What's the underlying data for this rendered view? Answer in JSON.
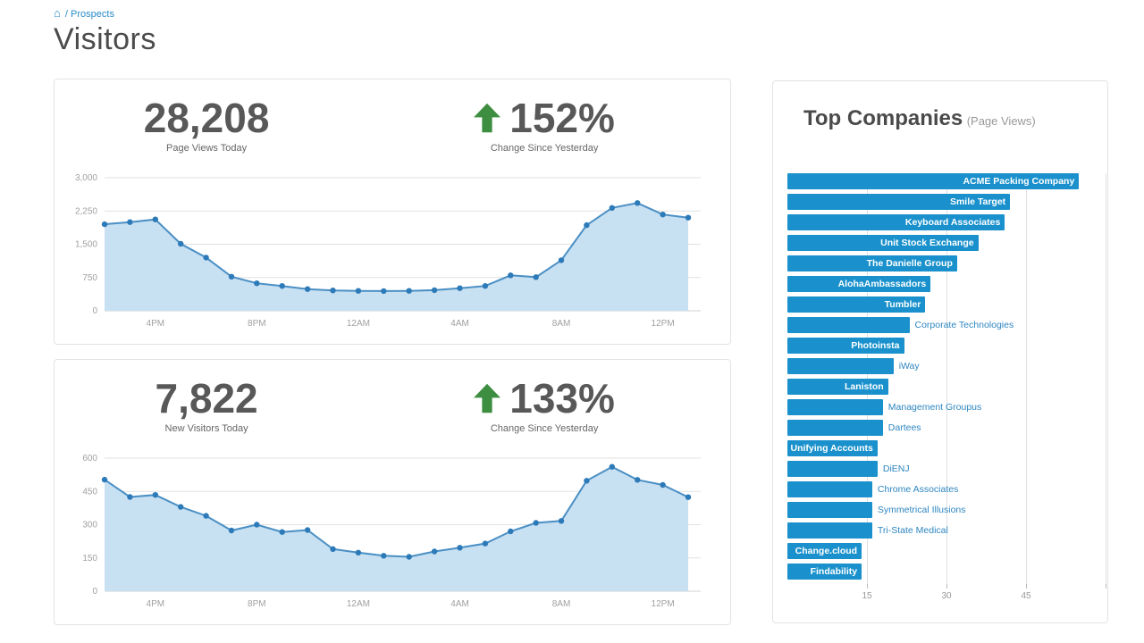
{
  "breadcrumb": {
    "home_icon": "⌂",
    "path": "/ Prospects"
  },
  "page": {
    "title": "Visitors"
  },
  "colors": {
    "bar_blue": "#1a91cc",
    "line_blue": "#4a8fc4",
    "marker_blue": "#2d7ab8",
    "fill_blue": "#c7e0f2",
    "grid_gray": "#e2e2e2",
    "zero_line_gray": "#d2d2d2",
    "axis_text_gray": "#a0a0a0",
    "arrow_green": "#3e8e41",
    "outside_label_blue": "#2e86c1"
  },
  "panels": {
    "page_views": {
      "value": "28,208",
      "value_label": "Page Views Today",
      "change": "152%",
      "change_label": "Change Since Yesterday"
    },
    "new_visitors": {
      "value": "7,822",
      "value_label": "New Visitors Today",
      "change": "133%",
      "change_label": "Change Since Yesterday"
    },
    "top_companies": {
      "title": "Top Companies",
      "subtitle": "(Page Views)"
    }
  },
  "chart_data": [
    {
      "type": "area",
      "title": "Page Views Today (hourly)",
      "x_tick_labels": [
        "4PM",
        "8PM",
        "12AM",
        "4AM",
        "8AM",
        "12PM"
      ],
      "x_tick_indices": [
        2,
        6,
        10,
        14,
        18,
        22
      ],
      "y_ticks": [
        0,
        750,
        1500,
        2250,
        3000
      ],
      "y_tick_labels": [
        "0",
        "750",
        "1,500",
        "2,250",
        "3,000"
      ],
      "ylim": [
        0,
        3000
      ],
      "grid": "horizontal",
      "legend": "none",
      "values": [
        1950,
        2000,
        2060,
        1510,
        1200,
        770,
        620,
        560,
        490,
        460,
        450,
        445,
        450,
        465,
        510,
        560,
        800,
        760,
        1140,
        1930,
        2320,
        2430,
        2170,
        2100
      ]
    },
    {
      "type": "area",
      "title": "New Visitors Today (hourly)",
      "x_tick_labels": [
        "4PM",
        "8PM",
        "12AM",
        "4AM",
        "8AM",
        "12PM"
      ],
      "x_tick_indices": [
        2,
        6,
        10,
        14,
        18,
        22
      ],
      "y_ticks": [
        0,
        150,
        300,
        450,
        600
      ],
      "y_tick_labels": [
        "0",
        "150",
        "300",
        "450",
        "600"
      ],
      "ylim": [
        0,
        600
      ],
      "grid": "horizontal",
      "legend": "none",
      "values": [
        503,
        425,
        434,
        380,
        340,
        274,
        300,
        267,
        276,
        190,
        174,
        160,
        155,
        179,
        196,
        215,
        270,
        308,
        317,
        498,
        561,
        502,
        479,
        424
      ]
    },
    {
      "type": "bar",
      "orientation": "horizontal",
      "title": "Top Companies (Page Views)",
      "x_ticks": [
        15,
        30,
        45
      ],
      "x_grid_ticks": [
        15,
        30,
        45,
        60
      ],
      "xlim": [
        0,
        60
      ],
      "companies": [
        {
          "name": "ACME Packing Company",
          "value": 55,
          "label_position": "inside"
        },
        {
          "name": "Smile Target",
          "value": 42,
          "label_position": "inside"
        },
        {
          "name": "Keyboard Associates",
          "value": 41,
          "label_position": "inside"
        },
        {
          "name": "Unit Stock Exchange",
          "value": 36,
          "label_position": "inside"
        },
        {
          "name": "The Danielle Group",
          "value": 32,
          "label_position": "inside"
        },
        {
          "name": "AlohaAmbassadors",
          "value": 27,
          "label_position": "inside"
        },
        {
          "name": "Tumbler",
          "value": 26,
          "label_position": "inside"
        },
        {
          "name": "Corporate Technologies",
          "value": 23,
          "label_position": "outside"
        },
        {
          "name": "Photoinsta",
          "value": 22,
          "label_position": "inside"
        },
        {
          "name": "iWay",
          "value": 20,
          "label_position": "outside"
        },
        {
          "name": "Laniston",
          "value": 19,
          "label_position": "inside"
        },
        {
          "name": "Management Groupus",
          "value": 18,
          "label_position": "outside"
        },
        {
          "name": "Dartees",
          "value": 18,
          "label_position": "outside"
        },
        {
          "name": "Unifying Accounts",
          "value": 17,
          "label_position": "inside"
        },
        {
          "name": "DiENJ",
          "value": 17,
          "label_position": "outside"
        },
        {
          "name": "Chrome Associates",
          "value": 16,
          "label_position": "outside"
        },
        {
          "name": "Symmetrical Illusions",
          "value": 16,
          "label_position": "outside"
        },
        {
          "name": "Tri-State Medical",
          "value": 16,
          "label_position": "outside"
        },
        {
          "name": "Change.cloud",
          "value": 14,
          "label_position": "inside"
        },
        {
          "name": "Findability",
          "value": 14,
          "label_position": "inside"
        }
      ]
    }
  ]
}
